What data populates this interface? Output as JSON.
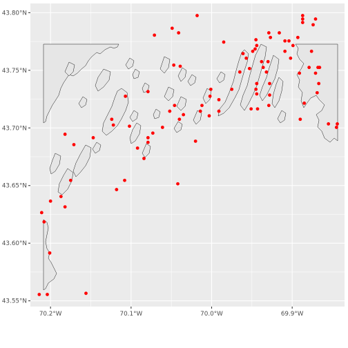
{
  "chart_data": {
    "type": "scatter",
    "title": "",
    "xlabel": "",
    "ylabel": "",
    "xlim": [
      -70.225,
      -69.835
    ],
    "ylim": [
      43.545,
      43.808
    ],
    "x_ticks": [
      {
        "value": -70.2,
        "label": "70.2°W"
      },
      {
        "value": -70.1,
        "label": "70.1°W"
      },
      {
        "value": -70.0,
        "label": "70.0°W"
      },
      {
        "value": -69.9,
        "label": "69.9°W"
      }
    ],
    "y_ticks": [
      {
        "value": 43.55,
        "label": "43.55°N"
      },
      {
        "value": 43.6,
        "label": "43.60°N"
      },
      {
        "value": 43.65,
        "label": "43.65°N"
      },
      {
        "value": 43.7,
        "label": "43.70°N"
      },
      {
        "value": 43.75,
        "label": "43.75°N"
      },
      {
        "value": 43.8,
        "label": "43.80°N"
      }
    ],
    "grid": true,
    "colors": {
      "panel": "#ebebeb",
      "grid": "#ffffff",
      "land": "#e6e6e6",
      "coast": "#1a1a1a",
      "point": "#ff0000"
    },
    "points": [
      {
        "x": -70.214,
        "y": 43.5555
      },
      {
        "x": -70.204,
        "y": 43.5555
      },
      {
        "x": -70.156,
        "y": 43.5565
      },
      {
        "x": -70.201,
        "y": 43.5915
      },
      {
        "x": -70.211,
        "y": 43.6265
      },
      {
        "x": -70.208,
        "y": 43.6185
      },
      {
        "x": -70.2,
        "y": 43.6365
      },
      {
        "x": -70.187,
        "y": 43.6405
      },
      {
        "x": -70.182,
        "y": 43.6315
      },
      {
        "x": -70.175,
        "y": 43.6545
      },
      {
        "x": -70.182,
        "y": 43.6945
      },
      {
        "x": -70.171,
        "y": 43.6855
      },
      {
        "x": -70.147,
        "y": 43.6915
      },
      {
        "x": -70.118,
        "y": 43.6465
      },
      {
        "x": -70.108,
        "y": 43.6545
      },
      {
        "x": -70.122,
        "y": 43.7025
      },
      {
        "x": -70.124,
        "y": 43.7075
      },
      {
        "x": -70.102,
        "y": 43.7015
      },
      {
        "x": -70.092,
        "y": 43.6825
      },
      {
        "x": -70.084,
        "y": 43.6735
      },
      {
        "x": -70.079,
        "y": 43.6875
      },
      {
        "x": -70.079,
        "y": 43.6915
      },
      {
        "x": -70.073,
        "y": 43.6955
      },
      {
        "x": -70.061,
        "y": 43.7005
      },
      {
        "x": -70.107,
        "y": 43.7275
      },
      {
        "x": -70.079,
        "y": 43.7315
      },
      {
        "x": -70.071,
        "y": 43.7805
      },
      {
        "x": -70.052,
        "y": 43.7145
      },
      {
        "x": -70.046,
        "y": 43.7195
      },
      {
        "x": -70.04,
        "y": 43.7075
      },
      {
        "x": -70.035,
        "y": 43.7115
      },
      {
        "x": -70.042,
        "y": 43.6515
      },
      {
        "x": -70.02,
        "y": 43.6885
      },
      {
        "x": -70.047,
        "y": 43.7545
      },
      {
        "x": -70.039,
        "y": 43.7535
      },
      {
        "x": -70.049,
        "y": 43.7865
      },
      {
        "x": -70.041,
        "y": 43.7825
      },
      {
        "x": -70.018,
        "y": 43.7975
      },
      {
        "x": -70.012,
        "y": 43.7195
      },
      {
        "x": -70.014,
        "y": 43.7145
      },
      {
        "x": -70.003,
        "y": 43.7105
      },
      {
        "x": -70.002,
        "y": 43.7275
      },
      {
        "x": -70.001,
        "y": 43.7335
      },
      {
        "x": -69.991,
        "y": 43.7245
      },
      {
        "x": -69.991,
        "y": 43.7145
      },
      {
        "x": -69.985,
        "y": 43.7745
      },
      {
        "x": -69.975,
        "y": 43.7335
      },
      {
        "x": -69.965,
        "y": 43.7485
      },
      {
        "x": -69.961,
        "y": 43.7645
      },
      {
        "x": -69.957,
        "y": 43.7605
      },
      {
        "x": -69.949,
        "y": 43.7665
      },
      {
        "x": -69.953,
        "y": 43.7515
      },
      {
        "x": -69.951,
        "y": 43.7165
      },
      {
        "x": -69.943,
        "y": 43.7165
      },
      {
        "x": -69.944,
        "y": 43.7295
      },
      {
        "x": -69.945,
        "y": 43.7335
      },
      {
        "x": -69.944,
        "y": 43.7385
      },
      {
        "x": -69.946,
        "y": 43.7685
      },
      {
        "x": -69.944,
        "y": 43.7715
      },
      {
        "x": -69.945,
        "y": 43.7765
      },
      {
        "x": -69.938,
        "y": 43.7575
      },
      {
        "x": -69.936,
        "y": 43.7525
      },
      {
        "x": -69.932,
        "y": 43.7485
      },
      {
        "x": -69.93,
        "y": 43.7575
      },
      {
        "x": -69.928,
        "y": 43.7285
      },
      {
        "x": -69.928,
        "y": 43.7385
      },
      {
        "x": -69.929,
        "y": 43.7195
      },
      {
        "x": -69.929,
        "y": 43.7825
      },
      {
        "x": -69.916,
        "y": 43.7825
      },
      {
        "x": -69.909,
        "y": 43.7665
      },
      {
        "x": -69.909,
        "y": 43.7755
      },
      {
        "x": -69.904,
        "y": 43.7755
      },
      {
        "x": -69.902,
        "y": 43.7605
      },
      {
        "x": -69.899,
        "y": 43.7715
      },
      {
        "x": -69.893,
        "y": 43.7785
      },
      {
        "x": -69.891,
        "y": 43.7475
      },
      {
        "x": -69.89,
        "y": 43.7075
      },
      {
        "x": -69.885,
        "y": 43.7215
      },
      {
        "x": -69.887,
        "y": 43.7915
      },
      {
        "x": -69.887,
        "y": 43.7975
      },
      {
        "x": -69.887,
        "y": 43.7945
      },
      {
        "x": -69.879,
        "y": 43.7525
      },
      {
        "x": -69.876,
        "y": 43.7665
      },
      {
        "x": -69.874,
        "y": 43.7895
      },
      {
        "x": -69.871,
        "y": 43.7475
      },
      {
        "x": -69.868,
        "y": 43.7525
      },
      {
        "x": -69.867,
        "y": 43.7385
      },
      {
        "x": -69.869,
        "y": 43.7305
      },
      {
        "x": -69.866,
        "y": 43.7525
      },
      {
        "x": -69.855,
        "y": 43.7035
      },
      {
        "x": -69.844,
        "y": 43.7035
      },
      {
        "x": -69.845,
        "y": 43.7005
      },
      {
        "x": -69.871,
        "y": 43.7945
      },
      {
        "x": -69.927,
        "y": 43.7785
      }
    ]
  }
}
